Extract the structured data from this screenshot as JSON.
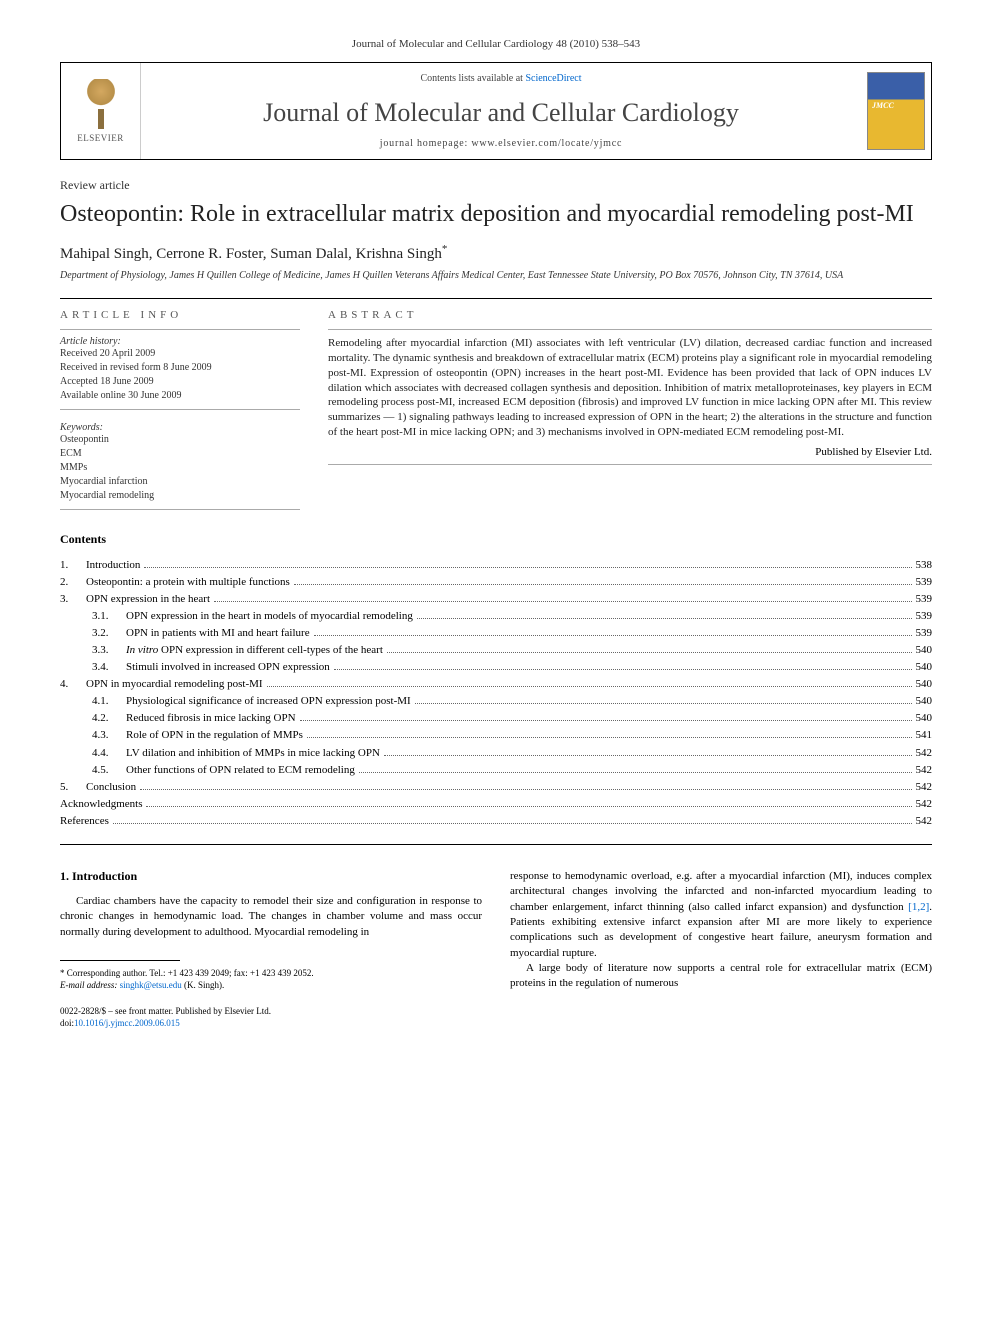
{
  "journal_reference": "Journal of Molecular and Cellular Cardiology 48 (2010) 538–543",
  "header": {
    "elsevier_label": "ELSEVIER",
    "contents_prefix": "Contents lists available at ",
    "sciencedirect": "ScienceDirect",
    "journal_name": "Journal of Molecular and Cellular Cardiology",
    "homepage_prefix": "journal homepage: ",
    "homepage_url": "www.elsevier.com/locate/yjmcc"
  },
  "article_type": "Review article",
  "title": "Osteopontin: Role in extracellular matrix deposition and myocardial remodeling post-MI",
  "authors": "Mahipal Singh, Cerrone R. Foster, Suman Dalal, Krishna Singh",
  "corr_marker": "*",
  "affiliation": "Department of Physiology, James H Quillen College of Medicine, James H Quillen Veterans Affairs Medical Center, East Tennessee State University, PO Box 70576, Johnson City, TN 37614, USA",
  "info_heading": "ARTICLE INFO",
  "abstract_heading": "ABSTRACT",
  "history": {
    "label": "Article history:",
    "items": [
      "Received 20 April 2009",
      "Received in revised form 8 June 2009",
      "Accepted 18 June 2009",
      "Available online 30 June 2009"
    ]
  },
  "keywords": {
    "label": "Keywords:",
    "items": [
      "Osteopontin",
      "ECM",
      "MMPs",
      "Myocardial infarction",
      "Myocardial remodeling"
    ]
  },
  "abstract": "Remodeling after myocardial infarction (MI) associates with left ventricular (LV) dilation, decreased cardiac function and increased mortality. The dynamic synthesis and breakdown of extracellular matrix (ECM) proteins play a significant role in myocardial remodeling post-MI. Expression of osteopontin (OPN) increases in the heart post-MI. Evidence has been provided that lack of OPN induces LV dilation which associates with decreased collagen synthesis and deposition. Inhibition of matrix metalloproteinases, key players in ECM remodeling process post-MI, increased ECM deposition (fibrosis) and improved LV function in mice lacking OPN after MI. This review summarizes — 1) signaling pathways leading to increased expression of OPN in the heart; 2) the alterations in the structure and function of the heart post-MI in mice lacking OPN; and 3) mechanisms involved in OPN-mediated ECM remodeling post-MI.",
  "publisher": "Published by Elsevier Ltd.",
  "contents_heading": "Contents",
  "toc": [
    {
      "num": "1.",
      "title": "Introduction",
      "page": "538"
    },
    {
      "num": "2.",
      "title": "Osteopontin: a protein with multiple functions",
      "page": "539"
    },
    {
      "num": "3.",
      "title": "OPN expression in the heart",
      "page": "539"
    },
    {
      "sub": "3.1.",
      "title": "OPN expression in the heart in models of myocardial remodeling",
      "page": "539"
    },
    {
      "sub": "3.2.",
      "title": "OPN in patients with MI and heart failure",
      "page": "539"
    },
    {
      "sub": "3.3.",
      "title": "In vitro OPN expression in different cell-types of the heart",
      "page": "540"
    },
    {
      "sub": "3.4.",
      "title": "Stimuli involved in increased OPN expression",
      "page": "540"
    },
    {
      "num": "4.",
      "title": "OPN in myocardial remodeling post-MI",
      "page": "540"
    },
    {
      "sub": "4.1.",
      "title": "Physiological significance of increased OPN expression post-MI",
      "page": "540"
    },
    {
      "sub": "4.2.",
      "title": "Reduced fibrosis in mice lacking OPN",
      "page": "540"
    },
    {
      "sub": "4.3.",
      "title": "Role of OPN in the regulation of MMPs",
      "page": "541"
    },
    {
      "sub": "4.4.",
      "title": "LV dilation and inhibition of MMPs in mice lacking OPN",
      "page": "542"
    },
    {
      "sub": "4.5.",
      "title": "Other functions of OPN related to ECM remodeling",
      "page": "542"
    },
    {
      "num": "5.",
      "title": "Conclusion",
      "page": "542"
    },
    {
      "plain": true,
      "title": "Acknowledgments",
      "page": "542"
    },
    {
      "plain": true,
      "title": "References",
      "page": "542"
    }
  ],
  "intro": {
    "heading": "1. Introduction",
    "left_para": "Cardiac chambers have the capacity to remodel their size and configuration in response to chronic changes in hemodynamic load. The changes in chamber volume and mass occur normally during development to adulthood. Myocardial remodeling in",
    "right_para1_a": "response to hemodynamic overload, e.g. after a myocardial infarction (MI), induces complex architectural changes involving the infarcted and non-infarcted myocardium leading to chamber enlargement, infarct thinning (also called infarct expansion) and dysfunction ",
    "right_cite": "[1,2]",
    "right_para1_b": ". Patients exhibiting extensive infarct expansion after MI are more likely to experience complications such as development of congestive heart failure, aneurysm formation and myocardial rupture.",
    "right_para2": "A large body of literature now supports a central role for extracellular matrix (ECM) proteins in the regulation of numerous"
  },
  "footnote": {
    "corr_text": "* Corresponding author. Tel.: +1 423 439 2049; fax: +1 423 439 2052.",
    "email_label": "E-mail address: ",
    "email": "singhk@etsu.edu",
    "email_suffix": " (K. Singh)."
  },
  "copyright": {
    "line1": "0022-2828/$ – see front matter. Published by Elsevier Ltd.",
    "doi_prefix": "doi:",
    "doi": "10.1016/j.yjmcc.2009.06.015"
  }
}
